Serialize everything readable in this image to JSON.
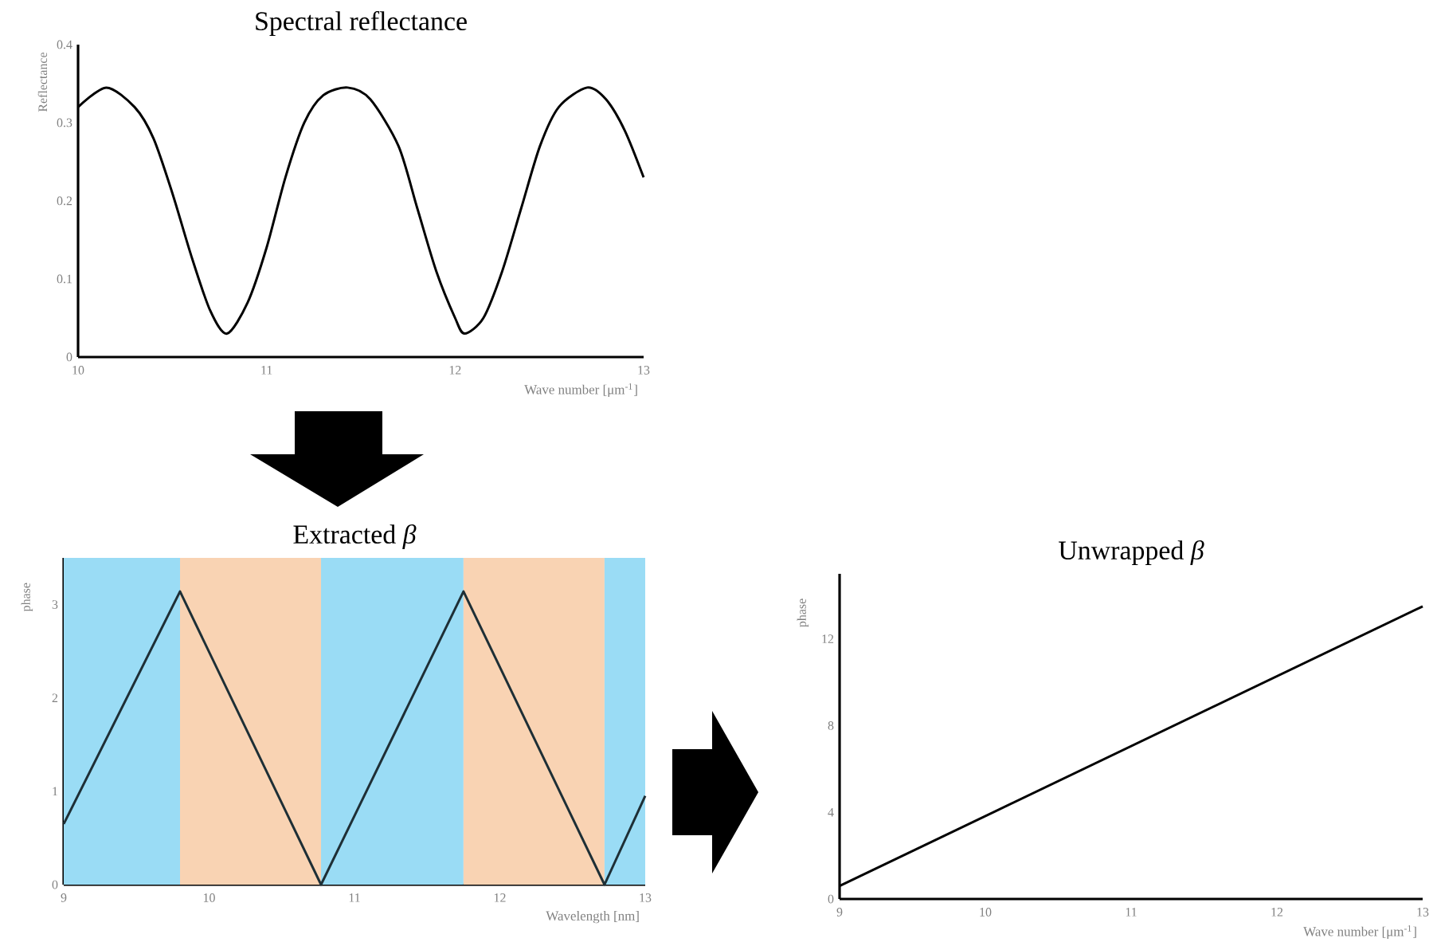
{
  "chart_data": [
    {
      "type": "line",
      "title": "Spectral reflectance",
      "xlabel": "Wave number [μm$^{-1}$]",
      "ylabel": "Reflectance",
      "xlim": [
        10,
        13
      ],
      "ylim": [
        0,
        0.4
      ],
      "xticks": [
        10,
        11,
        12,
        13
      ],
      "yticks": [
        0,
        0.1,
        0.2,
        0.3,
        0.4
      ],
      "grid": false,
      "series": [
        {
          "color": "#000000",
          "x": [
            10.0,
            10.15,
            10.3,
            10.4,
            10.5,
            10.6,
            10.7,
            10.79,
            10.9,
            11.0,
            11.1,
            11.2,
            11.3,
            11.43,
            11.55,
            11.7,
            11.8,
            11.9,
            12.0,
            12.05,
            12.15,
            12.25,
            12.35,
            12.45,
            12.55,
            12.7,
            12.8,
            12.9,
            13.0
          ],
          "values": [
            0.32,
            0.345,
            0.32,
            0.28,
            0.21,
            0.13,
            0.06,
            0.03,
            0.07,
            0.14,
            0.23,
            0.3,
            0.335,
            0.345,
            0.33,
            0.27,
            0.19,
            0.11,
            0.05,
            0.03,
            0.05,
            0.11,
            0.19,
            0.27,
            0.32,
            0.345,
            0.33,
            0.29,
            0.23
          ]
        }
      ]
    },
    {
      "type": "line",
      "title": "Extracted *β*",
      "xlabel": "Wavelength [nm]",
      "ylabel": "phase",
      "xlim": [
        9,
        13
      ],
      "ylim": [
        0,
        3.5
      ],
      "xticks": [
        9,
        10,
        11,
        12,
        13
      ],
      "yticks": [
        0,
        1,
        2,
        3
      ],
      "grid": false,
      "bands": [
        {
          "axis": "x",
          "from": 9,
          "to": 9.8,
          "color": "#9adcf5"
        },
        {
          "axis": "x",
          "from": 9.8,
          "to": 10.77,
          "color": "#f9d3b3"
        },
        {
          "axis": "x",
          "from": 10.77,
          "to": 11.75,
          "color": "#9adcf5"
        },
        {
          "axis": "x",
          "from": 11.75,
          "to": 12.72,
          "color": "#f9d3b3"
        },
        {
          "axis": "x",
          "from": 12.72,
          "to": 13,
          "color": "#9adcf5"
        }
      ],
      "series": [
        {
          "color": "#1e2f36",
          "x": [
            9,
            9.8,
            10.77,
            11.75,
            12.72,
            13
          ],
          "values": [
            0.65,
            3.14,
            0,
            3.14,
            0,
            0.95
          ]
        }
      ]
    },
    {
      "type": "line",
      "title": "Unwrapped *β*",
      "xlabel": "Wave number [μm$^{-1}$]",
      "ylabel": "phase",
      "xlim": [
        9,
        13
      ],
      "ylim": [
        0,
        15
      ],
      "xticks": [
        9,
        10,
        11,
        12,
        13
      ],
      "yticks": [
        0,
        4,
        8,
        12
      ],
      "grid": false,
      "series": [
        {
          "color": "#000000",
          "x": [
            9,
            13
          ],
          "values": [
            0.6,
            13.5
          ]
        }
      ]
    }
  ]
}
